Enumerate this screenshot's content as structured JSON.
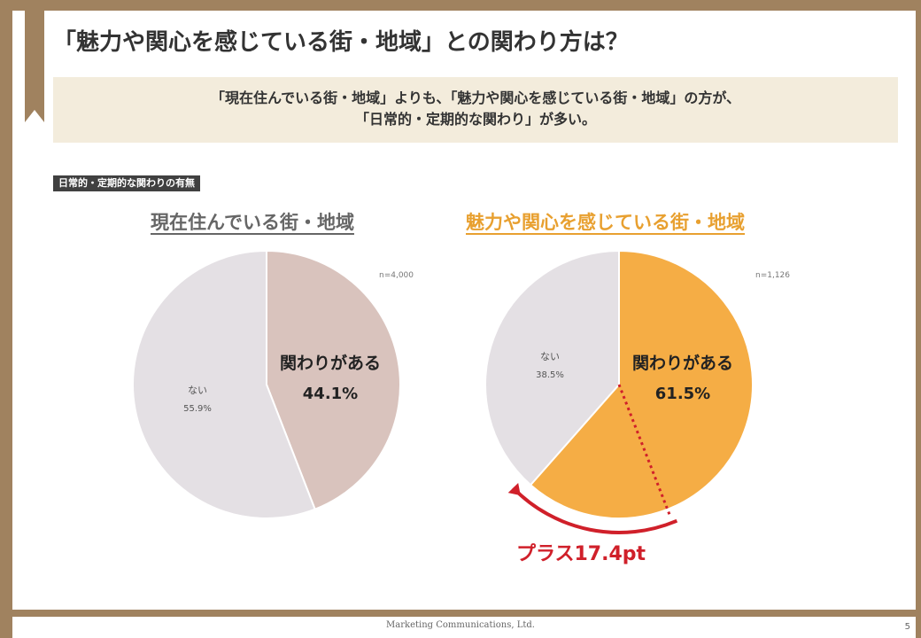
{
  "title": "「魅力や関心を感じている街・地域」との関わり方は？",
  "summary": {
    "line1": "「現在住んでいる街・地域」よりも、「魅力や関心を感じている街・地域」の方が、",
    "line2": "「日常的・定期的な関わり」が多い。"
  },
  "section_tag": "日常的・定期的な関わりの有無",
  "chart_data": [
    {
      "type": "pie",
      "title": "現在住んでいる街・地域",
      "n_label": "n=4,000",
      "slices": [
        {
          "label": "関わりがある",
          "value": 44.1,
          "display": "44.1%",
          "color": "#d9c3bd"
        },
        {
          "label": "ない",
          "value": 55.9,
          "display": "55.9%",
          "color": "#e4e0e4"
        }
      ]
    },
    {
      "type": "pie",
      "title": "魅力や関心を感じている街・地域",
      "n_label": "n=1,126",
      "slices": [
        {
          "label": "関わりがある",
          "value": 61.5,
          "display": "61.5%",
          "color": "#f5ad45"
        },
        {
          "label": "ない",
          "value": 38.5,
          "display": "38.5%",
          "color": "#e4e0e4"
        }
      ],
      "annotation": {
        "text": "プラス17.4pt",
        "reference_value": 44.1,
        "color": "#d0202a"
      }
    }
  ],
  "footer": "Marketing Communications, Ltd.",
  "page_number": "5"
}
